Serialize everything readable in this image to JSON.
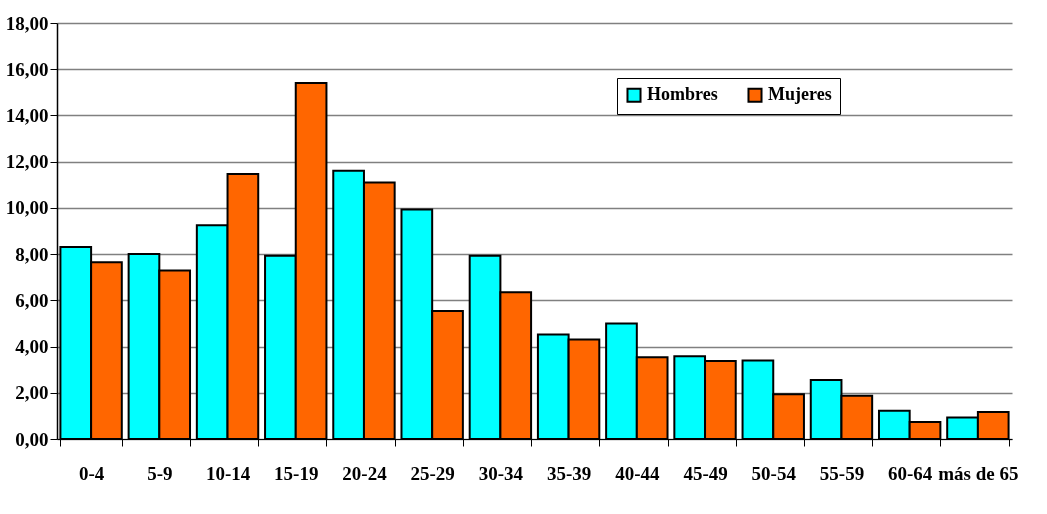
{
  "chart_data": {
    "type": "bar",
    "categories": [
      "0-4",
      "5-9",
      "10-14",
      "15-19",
      "20-24",
      "25-29",
      "30-34",
      "35-39",
      "40-44",
      "45-49",
      "50-54",
      "55-59",
      "60-64",
      "más de 65"
    ],
    "series": [
      {
        "name": "Hombres",
        "color": "#00ffff",
        "values": [
          8.31,
          8.0,
          9.25,
          7.93,
          11.61,
          9.93,
          7.93,
          4.52,
          5.0,
          3.58,
          3.4,
          2.55,
          1.22,
          0.93
        ]
      },
      {
        "name": "Mujeres",
        "color": "#ff6600",
        "values": [
          7.65,
          7.29,
          11.47,
          15.4,
          11.1,
          5.54,
          6.35,
          4.3,
          3.54,
          3.37,
          1.94,
          1.87,
          0.74,
          1.17
        ]
      }
    ],
    "ylim": [
      0,
      18
    ],
    "yticks": [
      {
        "value": 0,
        "label": "0,00"
      },
      {
        "value": 2,
        "label": "2,00"
      },
      {
        "value": 4,
        "label": "4,00"
      },
      {
        "value": 6,
        "label": "6,00"
      },
      {
        "value": 8,
        "label": "8,00"
      },
      {
        "value": 10,
        "label": "10,00"
      },
      {
        "value": 12,
        "label": "12,00"
      },
      {
        "value": 14,
        "label": "14,00"
      },
      {
        "value": 16,
        "label": "16,00"
      },
      {
        "value": 18,
        "label": "18,00"
      }
    ],
    "grid": "y",
    "legend": "top right"
  }
}
